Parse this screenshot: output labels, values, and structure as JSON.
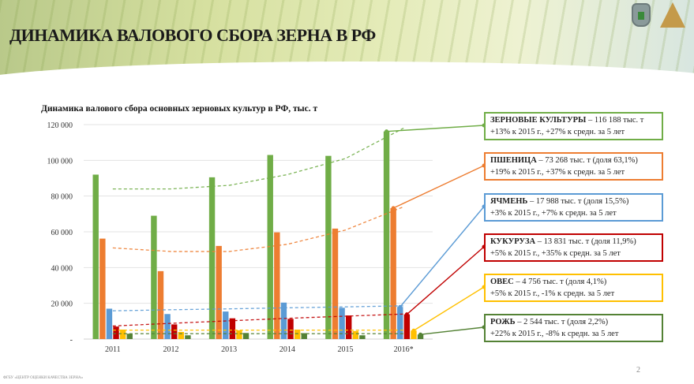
{
  "header": {
    "title": "ДИНАМИКА ВАЛОВОГО СБОРА ЗЕРНА В РФ"
  },
  "footer": {
    "org": "ФГБУ «ЦЕНТР ОЦЕНКИ КАЧЕСТВА ЗЕРНА»",
    "page": "2"
  },
  "chart_data": {
    "type": "bar",
    "title": "Динамика валового сбора основных зерновых культур в РФ, тыс. т",
    "categories": [
      "2011",
      "2012",
      "2013",
      "2014",
      "2015",
      "2016*"
    ],
    "ylim": [
      0,
      120000
    ],
    "yticks": [
      {
        "v": 0,
        "label": "-"
      },
      {
        "v": 20000,
        "label": "20 000"
      },
      {
        "v": 40000,
        "label": "40 000"
      },
      {
        "v": 60000,
        "label": "60 000"
      },
      {
        "v": 80000,
        "label": "80 000"
      },
      {
        "v": 100000,
        "label": "100 000"
      },
      {
        "v": 120000,
        "label": "120 000"
      }
    ],
    "grid": true,
    "series": [
      {
        "name": "Зерновые культуры",
        "color": "#70ad47",
        "values": [
          92000,
          69000,
          90500,
          103000,
          102500,
          116188
        ],
        "trend": [
          84000,
          84000,
          86000,
          92000,
          101000,
          118000
        ]
      },
      {
        "name": "Пшеница",
        "color": "#ed7d31",
        "values": [
          56200,
          38000,
          52100,
          59700,
          61800,
          73268
        ],
        "trend": [
          51000,
          49000,
          49000,
          53000,
          61000,
          74000
        ]
      },
      {
        "name": "Ячмень",
        "color": "#5b9bd5",
        "values": [
          17000,
          14000,
          15400,
          20400,
          17500,
          17988
        ],
        "trend": [
          15800,
          16400,
          16900,
          17500,
          18000,
          18600
        ]
      },
      {
        "name": "Кукуруза",
        "color": "#c00000",
        "values": [
          7000,
          8200,
          11600,
          11300,
          13200,
          13831
        ],
        "trend": [
          7300,
          8800,
          10200,
          11600,
          12800,
          14000
        ]
      },
      {
        "name": "Овес",
        "color": "#ffc000",
        "values": [
          5300,
          4000,
          4900,
          5300,
          4500,
          4756
        ],
        "trend": [
          5000,
          5000,
          5000,
          5000,
          5000,
          5000
        ]
      },
      {
        "name": "Рожь",
        "color": "#548235",
        "values": [
          3000,
          2100,
          3400,
          3300,
          2100,
          2544
        ],
        "trend": [
          3000,
          3000,
          3000,
          3000,
          3000,
          3000
        ]
      }
    ],
    "callouts": [
      {
        "name": "ЗЕРНОВЫЕ КУЛЬТУРЫ",
        "text": " – 116 188 тыс. т",
        "line2": "+13% к 2015 г., +27% к средн. за 5 лет"
      },
      {
        "name": "ПШЕНИЦА",
        "text": " – 73 268 тыс. т (доля 63,1%)",
        "line2": "+19% к 2015 г., +37% к средн. за 5 лет"
      },
      {
        "name": "ЯЧМЕНЬ",
        "text": " – 17 988 тыс. т (доля 15,5%)",
        "line2": "+3% к 2015 г., +7% к средн. за 5 лет"
      },
      {
        "name": "КУКУРУЗА",
        "text": "  – 13 831 тыс. т (доля 11,9%)",
        "line2": "+5% к 2015 г., +35% к средн. за 5 лет"
      },
      {
        "name": "ОВЕС",
        "text": "  – 4 756 тыс. т (доля 4,1%)",
        "line2": "+5% к 2015 г., -1% к средн. за 5 лет"
      },
      {
        "name": "РОЖЬ",
        "text": "  – 2 544 тыс. т (доля 2,2%)",
        "line2": "+22% к 2015 г., -8% к средн. за 5 лет"
      }
    ]
  }
}
